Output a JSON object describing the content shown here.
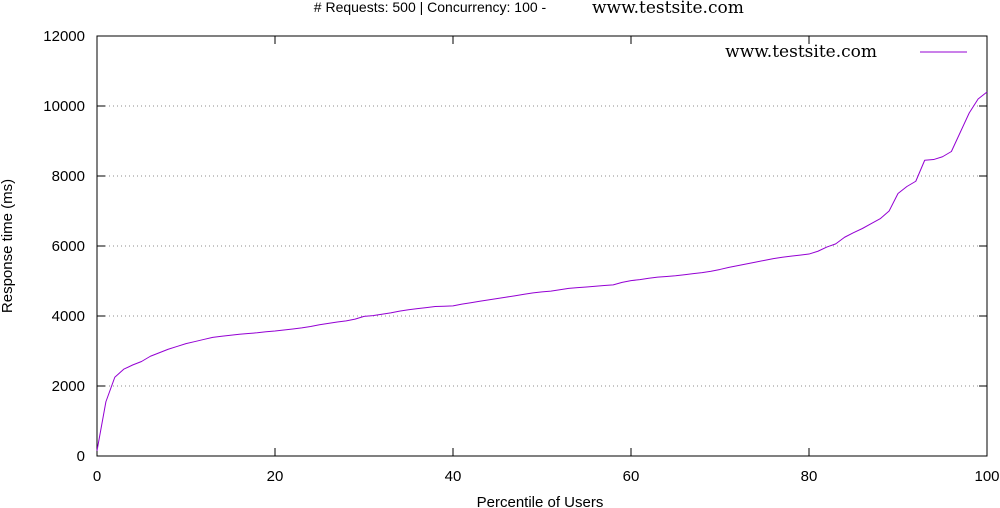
{
  "chart_data": {
    "type": "line",
    "title_prefix": "# Requests: 500 | Concurrency: 100 -",
    "title_site": "www.testsite.com",
    "xlabel": "Percentile of Users",
    "ylabel": "Response time (ms)",
    "xlim": [
      0,
      100
    ],
    "ylim": [
      0,
      12000
    ],
    "x_ticks": [
      0,
      20,
      40,
      60,
      80,
      100
    ],
    "y_ticks": [
      0,
      2000,
      4000,
      6000,
      8000,
      10000,
      12000
    ],
    "grid": "horizontal-dotted",
    "legend_position": "top-right",
    "series": [
      {
        "name": "www.testsite.com",
        "color": "#9400d3",
        "points": [
          [
            0,
            150
          ],
          [
            1,
            1550
          ],
          [
            2,
            2250
          ],
          [
            3,
            2480
          ],
          [
            4,
            2600
          ],
          [
            5,
            2700
          ],
          [
            6,
            2850
          ],
          [
            7,
            2950
          ],
          [
            8,
            3050
          ],
          [
            9,
            3130
          ],
          [
            10,
            3210
          ],
          [
            11,
            3270
          ],
          [
            12,
            3330
          ],
          [
            13,
            3390
          ],
          [
            14,
            3420
          ],
          [
            15,
            3450
          ],
          [
            16,
            3480
          ],
          [
            17,
            3500
          ],
          [
            18,
            3520
          ],
          [
            19,
            3550
          ],
          [
            20,
            3570
          ],
          [
            21,
            3600
          ],
          [
            22,
            3630
          ],
          [
            23,
            3660
          ],
          [
            24,
            3700
          ],
          [
            25,
            3750
          ],
          [
            26,
            3790
          ],
          [
            27,
            3830
          ],
          [
            28,
            3860
          ],
          [
            29,
            3910
          ],
          [
            30,
            3990
          ],
          [
            31,
            4010
          ],
          [
            32,
            4050
          ],
          [
            33,
            4090
          ],
          [
            34,
            4140
          ],
          [
            35,
            4180
          ],
          [
            36,
            4210
          ],
          [
            37,
            4240
          ],
          [
            38,
            4270
          ],
          [
            39,
            4280
          ],
          [
            40,
            4290
          ],
          [
            41,
            4340
          ],
          [
            42,
            4380
          ],
          [
            43,
            4420
          ],
          [
            44,
            4460
          ],
          [
            45,
            4500
          ],
          [
            46,
            4540
          ],
          [
            47,
            4580
          ],
          [
            48,
            4620
          ],
          [
            49,
            4660
          ],
          [
            50,
            4690
          ],
          [
            51,
            4710
          ],
          [
            52,
            4750
          ],
          [
            53,
            4790
          ],
          [
            54,
            4810
          ],
          [
            55,
            4830
          ],
          [
            56,
            4850
          ],
          [
            57,
            4870
          ],
          [
            58,
            4890
          ],
          [
            59,
            4960
          ],
          [
            60,
            5010
          ],
          [
            61,
            5040
          ],
          [
            62,
            5080
          ],
          [
            63,
            5110
          ],
          [
            64,
            5130
          ],
          [
            65,
            5150
          ],
          [
            66,
            5180
          ],
          [
            67,
            5210
          ],
          [
            68,
            5240
          ],
          [
            69,
            5280
          ],
          [
            70,
            5330
          ],
          [
            71,
            5390
          ],
          [
            72,
            5440
          ],
          [
            73,
            5490
          ],
          [
            74,
            5540
          ],
          [
            75,
            5590
          ],
          [
            76,
            5640
          ],
          [
            77,
            5680
          ],
          [
            78,
            5710
          ],
          [
            79,
            5740
          ],
          [
            80,
            5770
          ],
          [
            81,
            5850
          ],
          [
            82,
            5970
          ],
          [
            83,
            6060
          ],
          [
            84,
            6250
          ],
          [
            85,
            6380
          ],
          [
            86,
            6500
          ],
          [
            87,
            6640
          ],
          [
            88,
            6780
          ],
          [
            89,
            7000
          ],
          [
            90,
            7500
          ],
          [
            91,
            7700
          ],
          [
            92,
            7850
          ],
          [
            93,
            8450
          ],
          [
            94,
            8470
          ],
          [
            95,
            8550
          ],
          [
            96,
            8700
          ],
          [
            97,
            9250
          ],
          [
            98,
            9800
          ],
          [
            99,
            10200
          ],
          [
            100,
            10400
          ]
        ]
      }
    ]
  }
}
